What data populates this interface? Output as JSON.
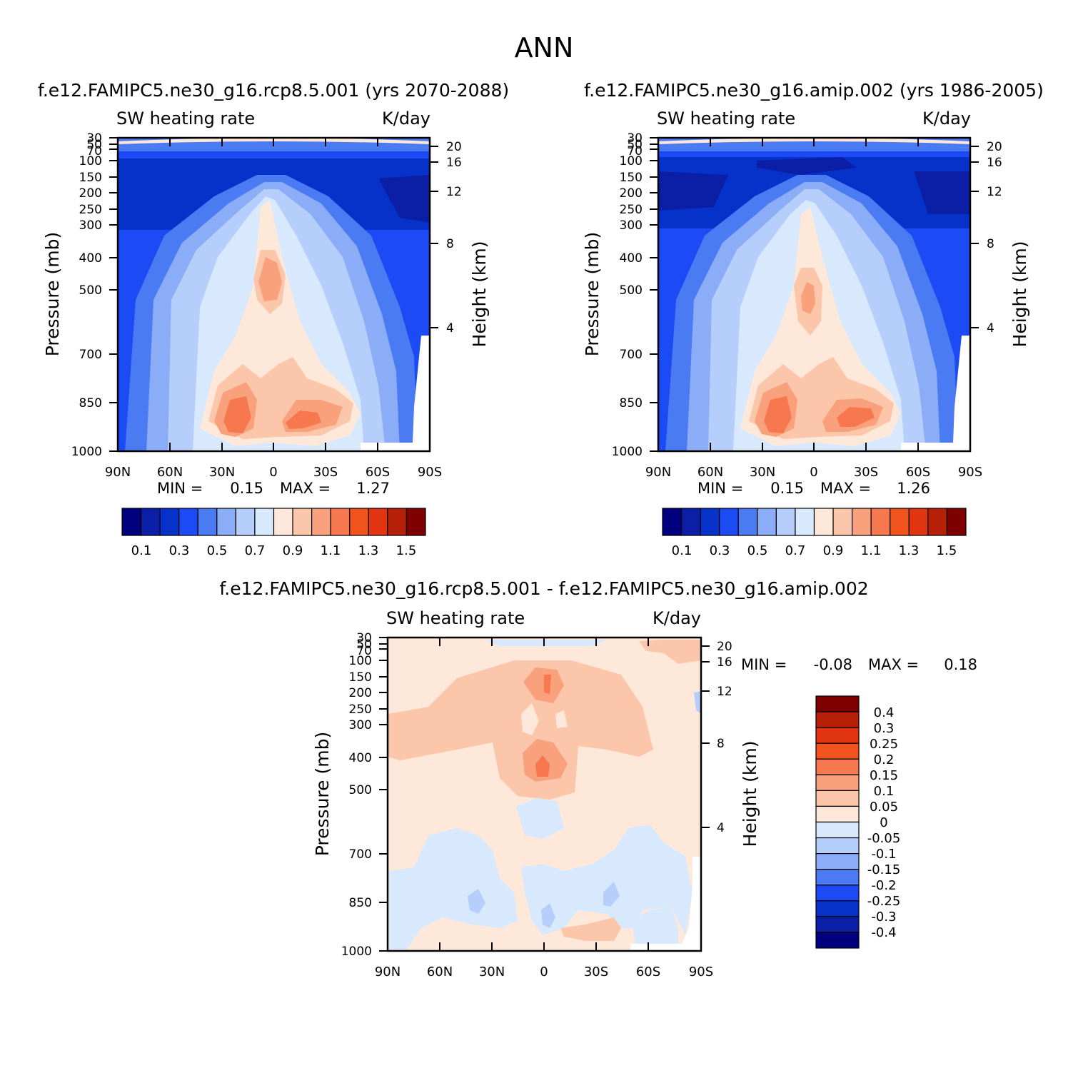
{
  "page_title": "ANN",
  "chart_data": [
    {
      "id": "left",
      "type": "heatmap",
      "subtitle": "f.e12.FAMIPC5.ne30_g16.rcp8.5.001 (yrs 2070-2088)",
      "left_label": "SW heating rate",
      "right_label": "K/day",
      "ylabel": "Pressure (mb)",
      "y2label": "Height (km)",
      "x_ticks": [
        "90N",
        "60N",
        "30N",
        "0",
        "30S",
        "60S",
        "90S"
      ],
      "y_ticks": [
        "30",
        "50",
        "70",
        "100",
        "150",
        "200",
        "250",
        "300",
        "400",
        "500",
        "700",
        "850",
        "1000"
      ],
      "y2_ticks": [
        "20",
        "16",
        "12",
        "8",
        "4"
      ],
      "min_label": "MIN =",
      "min_value": "0.15",
      "max_label": "MAX =",
      "max_value": "1.27",
      "colorbar_labels": [
        "0.1",
        "0.3",
        "0.5",
        "0.7",
        "0.9",
        "1.1",
        "1.3",
        "1.5"
      ]
    },
    {
      "id": "right",
      "type": "heatmap",
      "subtitle": "f.e12.FAMIPC5.ne30_g16.amip.002 (yrs 1986-2005)",
      "left_label": "SW heating rate",
      "right_label": "K/day",
      "ylabel": "Pressure (mb)",
      "y2label": "Height (km)",
      "x_ticks": [
        "90N",
        "60N",
        "30N",
        "0",
        "30S",
        "60S",
        "90S"
      ],
      "y_ticks": [
        "30",
        "50",
        "70",
        "100",
        "150",
        "200",
        "250",
        "300",
        "400",
        "500",
        "700",
        "850",
        "1000"
      ],
      "y2_ticks": [
        "20",
        "16",
        "12",
        "8",
        "4"
      ],
      "min_label": "MIN =",
      "min_value": "0.15",
      "max_label": "MAX =",
      "max_value": "1.26",
      "colorbar_labels": [
        "0.1",
        "0.3",
        "0.5",
        "0.7",
        "0.9",
        "1.1",
        "1.3",
        "1.5"
      ]
    },
    {
      "id": "diff",
      "type": "heatmap",
      "subtitle": "f.e12.FAMIPC5.ne30_g16.rcp8.5.001 - f.e12.FAMIPC5.ne30_g16.amip.002",
      "left_label": "SW heating rate",
      "right_label": "K/day",
      "ylabel": "Pressure (mb)",
      "y2label": "Height (km)",
      "x_ticks": [
        "90N",
        "60N",
        "30N",
        "0",
        "30S",
        "60S",
        "90S"
      ],
      "y_ticks": [
        "30",
        "50",
        "70",
        "100",
        "150",
        "200",
        "250",
        "300",
        "400",
        "500",
        "700",
        "850",
        "1000"
      ],
      "y2_ticks": [
        "20",
        "16",
        "12",
        "8",
        "4"
      ],
      "min_label": "MIN =",
      "min_value": "-0.08",
      "max_label": "MAX =",
      "max_value": "0.18",
      "colorbar_labels": [
        "0.4",
        "0.3",
        "0.25",
        "0.2",
        "0.15",
        "0.1",
        "0.05",
        "0",
        "-0.05",
        "-0.1",
        "-0.15",
        "-0.2",
        "-0.25",
        "-0.3",
        "-0.4"
      ]
    }
  ],
  "palette": {
    "abs_colors": [
      "#00007f",
      "#0a1fa5",
      "#0632c9",
      "#1c4af5",
      "#4b7bf3",
      "#8bacf6",
      "#b6cefc",
      "#d9e9fd",
      "#fde8da",
      "#fcc6ab",
      "#f9a17c",
      "#f7784f",
      "#f1531d",
      "#e13410",
      "#b61f08",
      "#7f0000"
    ],
    "diff_colors": [
      "#7f0000",
      "#b61f08",
      "#e13410",
      "#f1531d",
      "#f7784f",
      "#f9a17c",
      "#fcc6ab",
      "#fde8da",
      "#d9e9fd",
      "#b6cefc",
      "#8bacf6",
      "#4b7bf3",
      "#1c4af5",
      "#0632c9",
      "#0a1fa5",
      "#00007f"
    ]
  }
}
